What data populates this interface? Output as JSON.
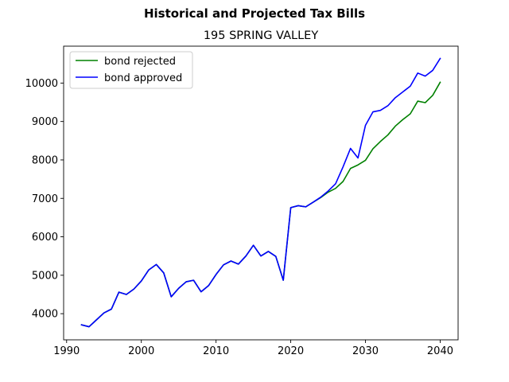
{
  "figure": {
    "suptitle": "Historical and Projected Tax Bills",
    "title": "195 SPRING VALLEY"
  },
  "chart_data": {
    "type": "line",
    "title": "195 SPRING VALLEY",
    "xlabel": "",
    "ylabel": "",
    "xlim": [
      1989.6,
      2042.4
    ],
    "ylim": [
      3320,
      10960
    ],
    "xticks": [
      1990,
      2000,
      2010,
      2020,
      2030,
      2040
    ],
    "yticks": [
      4000,
      5000,
      6000,
      7000,
      8000,
      9000,
      10000
    ],
    "grid": false,
    "legend_position": "upper-left",
    "x": [
      1992,
      1993,
      1994,
      1995,
      1996,
      1997,
      1998,
      1999,
      2000,
      2001,
      2002,
      2003,
      2004,
      2005,
      2006,
      2007,
      2008,
      2009,
      2010,
      2011,
      2012,
      2013,
      2014,
      2015,
      2016,
      2017,
      2018,
      2019,
      2020,
      2021,
      2022,
      2023,
      2024,
      2025,
      2026,
      2027,
      2028,
      2029,
      2030,
      2031,
      2032,
      2033,
      2034,
      2035,
      2036,
      2037,
      2038,
      2039,
      2040
    ],
    "series": [
      {
        "name": "bond rejected",
        "color": "#008000",
        "values": [
          3710,
          3660,
          3840,
          4020,
          4120,
          4560,
          4500,
          4640,
          4850,
          5140,
          5280,
          5060,
          4440,
          4660,
          4830,
          4870,
          4570,
          4730,
          5020,
          5270,
          5370,
          5290,
          5500,
          5780,
          5500,
          5620,
          5490,
          4870,
          6760,
          6810,
          6780,
          6900,
          7020,
          7160,
          7260,
          7440,
          7780,
          7870,
          7990,
          8290,
          8480,
          8650,
          8880,
          9050,
          9200,
          9530,
          9490,
          9680,
          10020
        ]
      },
      {
        "name": "bond approved",
        "color": "#0000ff",
        "values": [
          3710,
          3660,
          3840,
          4020,
          4120,
          4560,
          4500,
          4640,
          4850,
          5140,
          5280,
          5060,
          4440,
          4660,
          4830,
          4870,
          4570,
          4730,
          5020,
          5270,
          5370,
          5290,
          5500,
          5780,
          5500,
          5620,
          5490,
          4870,
          6760,
          6810,
          6780,
          6900,
          7030,
          7190,
          7380,
          7820,
          8300,
          8050,
          8900,
          9250,
          9290,
          9410,
          9620,
          9770,
          9920,
          10260,
          10180,
          10330,
          10640
        ]
      }
    ]
  }
}
